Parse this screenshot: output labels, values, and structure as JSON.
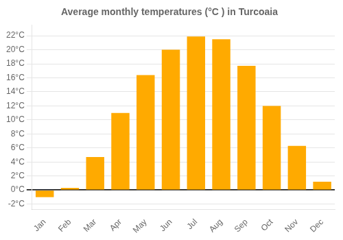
{
  "chart_data": {
    "type": "bar",
    "title": "Average monthly temperatures (°C ) in Turcoaia",
    "categories": [
      "Jan",
      "Feb",
      "Mar",
      "Apr",
      "May",
      "Jun",
      "Jul",
      "Aug",
      "Sep",
      "Oct",
      "Nov",
      "Dec"
    ],
    "values": [
      -1.0,
      0.3,
      4.7,
      11.0,
      16.4,
      20.0,
      21.9,
      21.5,
      17.7,
      12.0,
      6.3,
      1.2
    ],
    "color": "#FFAA00",
    "ylim": [
      -2.8,
      23.5
    ],
    "yticks": [
      {
        "value": -2,
        "label": "-2°C"
      },
      {
        "value": 0,
        "label": "0°C"
      },
      {
        "value": 2,
        "label": "2°C"
      },
      {
        "value": 4,
        "label": "4°C"
      },
      {
        "value": 6,
        "label": "6°C"
      },
      {
        "value": 8,
        "label": "8°C"
      },
      {
        "value": 10,
        "label": "10°C"
      },
      {
        "value": 12,
        "label": "12°C"
      },
      {
        "value": 14,
        "label": "14°C"
      },
      {
        "value": 16,
        "label": "16°C"
      },
      {
        "value": 18,
        "label": "18°C"
      },
      {
        "value": 20,
        "label": "20°C"
      },
      {
        "value": 22,
        "label": "22°C"
      }
    ],
    "grid": true
  }
}
